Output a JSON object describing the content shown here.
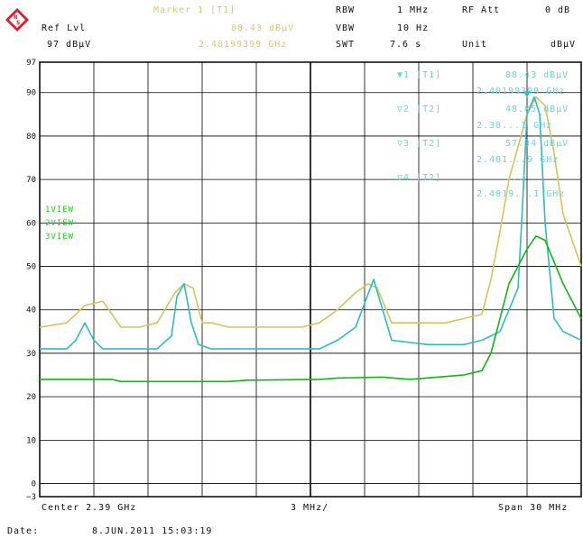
{
  "header": {
    "ref_lvl_label": "Ref Lvl",
    "ref_lvl_value": "97 dBµV",
    "marker_title": "Marker 1 [T1]",
    "marker_level": "88.43 dBµV",
    "marker_freq": "2.40199399 GHz",
    "rbw_label": "RBW",
    "rbw_value": "1 MHz",
    "vbw_label": "VBW",
    "vbw_value": "10 Hz",
    "swt_label": "SWT",
    "swt_value": "7.6 s",
    "rf_att_label": "RF Att",
    "rf_att_value": "0 dB",
    "unit_label": "Unit",
    "unit_value": "dBµV",
    "logo_icon": "rohde-schwarz-logo-icon"
  },
  "markers": [
    {
      "label": "▼1 [T1]",
      "level": "88.43 dBµV",
      "freq": "2.40199399 GHz"
    },
    {
      "label": "▽2 [T2]",
      "level": "48.05 dBµV",
      "freq": "2.38...1 GHz"
    },
    {
      "label": "▽3 [T2]",
      "level": "57.34 dBµV",
      "freq": "2.401...9 GHz"
    },
    {
      "label": "▽4 [T2]",
      "level": "...",
      "freq": "2.4019...1 GHz"
    }
  ],
  "views": [
    "1VIEW",
    "2VIEW",
    "3VIEW"
  ],
  "footer": {
    "center": "Center 2.39 GHz",
    "div": "3 MHz/",
    "span": "Span 30 MHz",
    "date_label": "Date:",
    "date_value": "8.JUN.2011  15:03:19"
  },
  "chart_data": {
    "type": "line",
    "xlabel": "",
    "ylabel": "",
    "xlim": [
      2.375,
      2.405
    ],
    "x_unit": "GHz",
    "ylim": [
      -3,
      97
    ],
    "yticks": [
      97,
      90,
      80,
      70,
      60,
      50,
      40,
      30,
      20,
      10,
      0,
      -3
    ],
    "grid": true,
    "series": [
      {
        "color": "#d4c45c",
        "x": [
          2.375,
          2.3765,
          2.3775,
          2.3785,
          2.3795,
          2.3805,
          2.3815,
          2.3825,
          2.383,
          2.3835,
          2.384,
          2.3845,
          2.3855,
          2.3865,
          2.3875,
          2.3895,
          2.3905,
          2.3915,
          2.3925,
          2.3932,
          2.3937,
          2.3945,
          2.3955,
          2.3975,
          2.3985,
          2.3995,
          2.4,
          2.4005,
          2.401,
          2.402,
          2.4025,
          2.403,
          2.4035,
          2.404,
          2.405
        ],
        "y": [
          36,
          37,
          41,
          42,
          36,
          36,
          37,
          44,
          46,
          45,
          37,
          37,
          36,
          36,
          36,
          36,
          37,
          40,
          44,
          46,
          45,
          37,
          37,
          37,
          38,
          39,
          47,
          58,
          70,
          85,
          89,
          87,
          76,
          62,
          50
        ]
      },
      {
        "color": "#2cbcc4",
        "x": [
          2.375,
          2.3765,
          2.377,
          2.3775,
          2.378,
          2.3785,
          2.3795,
          2.3805,
          2.3815,
          2.3823,
          2.3826,
          2.383,
          2.3834,
          2.3838,
          2.3845,
          2.3865,
          2.3895,
          2.3905,
          2.3915,
          2.3925,
          2.3935,
          2.3945,
          2.3965,
          2.3985,
          2.3995,
          2.4005,
          2.4015,
          2.4017,
          2.402,
          2.4024,
          2.4027,
          2.403,
          2.4035,
          2.404,
          2.405
        ],
        "y": [
          31,
          31,
          33,
          37,
          33,
          31,
          31,
          31,
          31,
          34,
          43,
          46,
          37,
          32,
          31,
          31,
          31,
          31,
          33,
          36,
          47,
          33,
          32,
          32,
          33,
          35,
          45,
          60,
          85,
          89,
          85,
          60,
          38,
          35,
          33
        ]
      },
      {
        "color": "#14b414",
        "x": [
          2.375,
          2.379,
          2.3795,
          2.3855,
          2.3865,
          2.3905,
          2.3915,
          2.394,
          2.3955,
          2.3985,
          2.3995,
          2.4,
          2.4005,
          2.401,
          2.402,
          2.4025,
          2.403,
          2.404,
          2.405
        ],
        "y": [
          24,
          24,
          23.5,
          23.5,
          23.8,
          24,
          24.3,
          24.5,
          24,
          25,
          26,
          30,
          38,
          46,
          54,
          57,
          56,
          46,
          38
        ]
      }
    ]
  }
}
